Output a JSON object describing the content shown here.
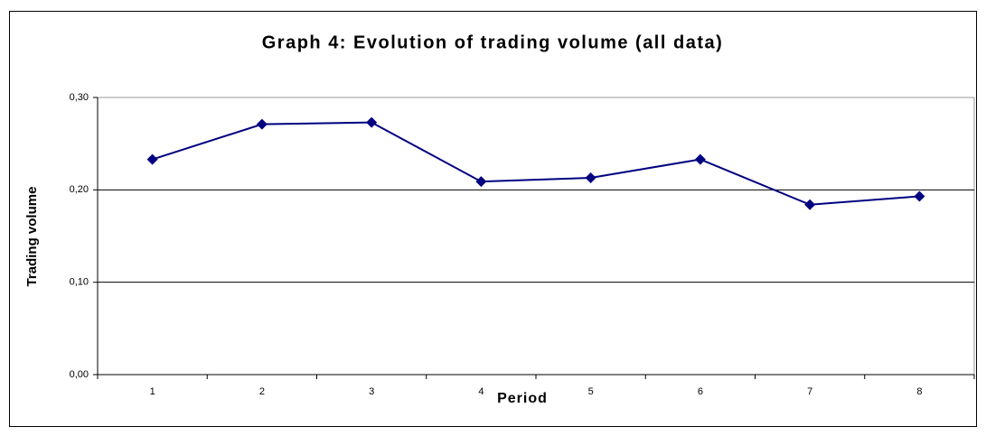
{
  "chart_data": {
    "type": "line",
    "title": "Graph 4: Evolution of trading volume (all data)",
    "x_label": "Period",
    "y_label": "Trading volume",
    "categories": [
      "1",
      "2",
      "3",
      "4",
      "5",
      "6",
      "7",
      "8"
    ],
    "series": [
      {
        "name": "Trading volume",
        "color": "#000080",
        "values": [
          0.233,
          0.271,
          0.273,
          0.209,
          0.213,
          0.233,
          0.184,
          0.193
        ]
      }
    ],
    "ylim": [
      0,
      0.3
    ],
    "yticks": [
      {
        "value": 0,
        "label": "0,00"
      },
      {
        "value": 0.1,
        "label": "0,10"
      },
      {
        "value": 0.2,
        "label": "0,20"
      },
      {
        "value": 0.3,
        "label": "0,30"
      }
    ],
    "grid": true
  }
}
